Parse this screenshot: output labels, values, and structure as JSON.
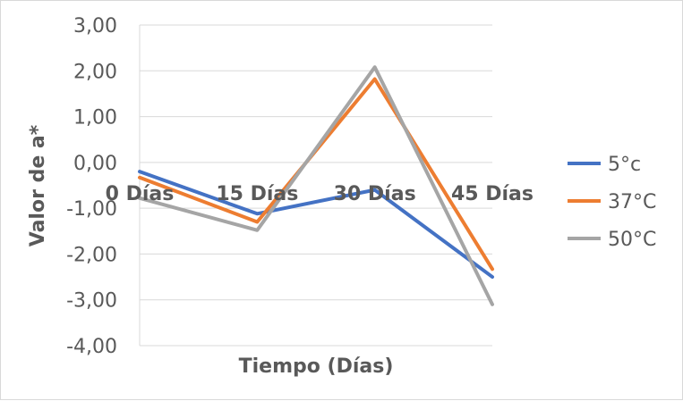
{
  "chart_data": {
    "type": "line",
    "title": "",
    "xlabel": "Tiempo (Días)",
    "ylabel": "Valor de a*",
    "categories": [
      "0 Días",
      "15 Días",
      "30 Días",
      "45 Días"
    ],
    "ylim": [
      -4,
      3
    ],
    "yticks": [
      3,
      2,
      1,
      0,
      -1,
      -2,
      -3,
      -4
    ],
    "ytick_labels": [
      "3,00",
      "2,00",
      "1,00",
      "0,00",
      "-1,00",
      "-2,00",
      "-3,00",
      "-4,00"
    ],
    "grid": true,
    "legend_position": "right",
    "series": [
      {
        "name": "5°c",
        "color": "#4472c4",
        "values": [
          -0.2,
          -1.12,
          -0.6,
          -2.5
        ]
      },
      {
        "name": "37°C",
        "color": "#ed7d31",
        "values": [
          -0.33,
          -1.3,
          1.82,
          -2.33
        ]
      },
      {
        "name": "50°C",
        "color": "#a5a5a5",
        "values": [
          -0.78,
          -1.48,
          2.08,
          -3.1
        ]
      }
    ]
  }
}
